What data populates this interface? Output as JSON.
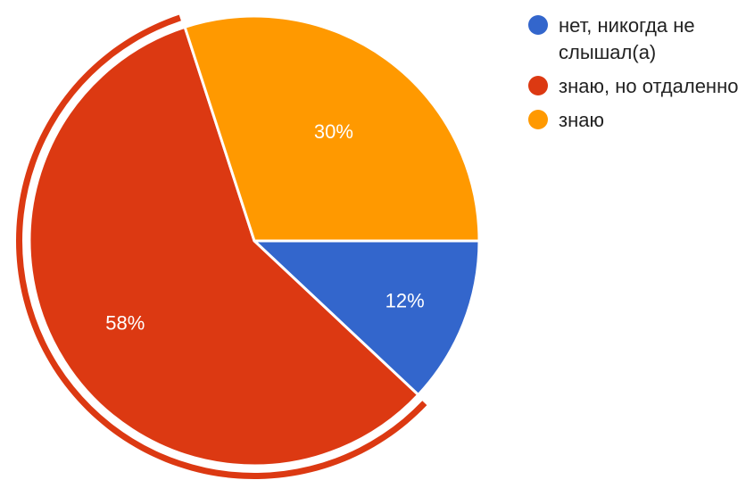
{
  "chart_data": {
    "type": "pie",
    "title": "",
    "slices": [
      {
        "label": "нет, никогда не слышал(а)",
        "value": 12,
        "value_label": "12%",
        "color": "#3366CC"
      },
      {
        "label": "знаю, но отдаленно",
        "value": 58,
        "value_label": "58%",
        "color": "#DC3912",
        "exploded": true
      },
      {
        "label": "знаю",
        "value": 30,
        "value_label": "30%",
        "color": "#FF9900"
      }
    ],
    "start_angle_deg": 0,
    "direction": "clockwise",
    "legend": {
      "placement": "right"
    }
  }
}
